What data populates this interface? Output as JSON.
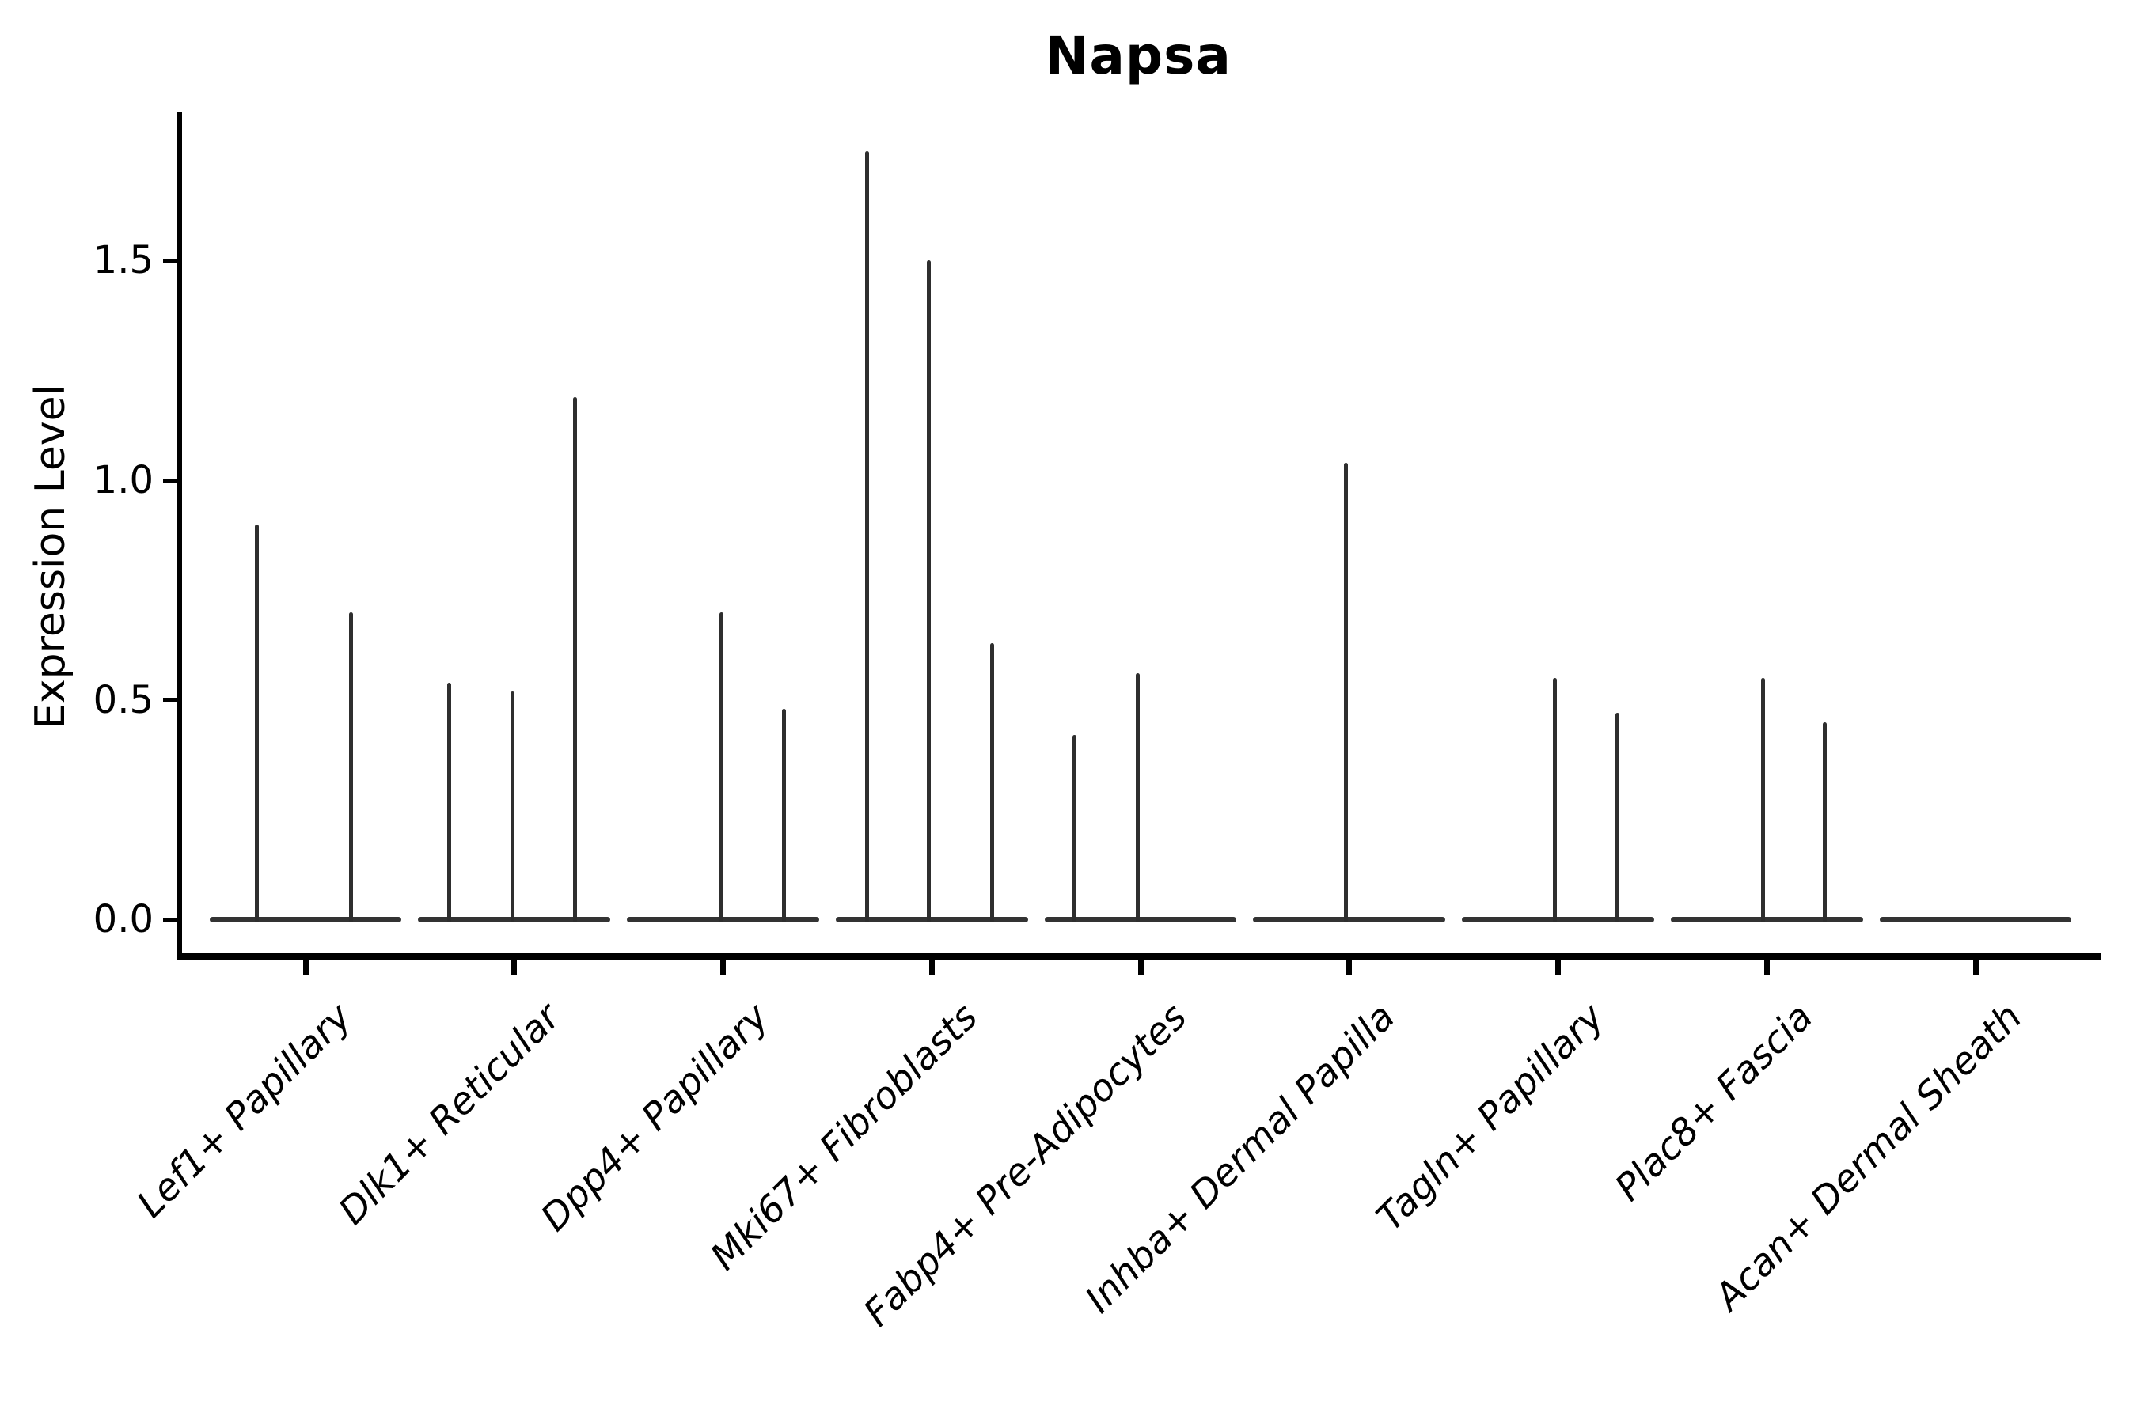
{
  "chart_data": {
    "type": "violin",
    "title": "Napsa",
    "xlabel": "",
    "ylabel": "Expression Level",
    "ylim": [
      -0.0875,
      1.8375
    ],
    "grid": false,
    "legend": "none",
    "yticks": [
      {
        "value": 0.0,
        "label": "0.0"
      },
      {
        "value": 0.5,
        "label": "0.5"
      },
      {
        "value": 1.0,
        "label": "1.0"
      },
      {
        "value": 1.5,
        "label": "1.5"
      }
    ],
    "colors": {
      "spike": "#2e2e2e",
      "base": "#333333",
      "axis": "#000000",
      "text": "#000000",
      "background": "#ffffff"
    },
    "categories": [
      "Lef1+ Papillary",
      "Dlk1+ Reticular",
      "Dpp4+ Papillary",
      "Mki67+ Fibroblasts",
      "Fabp4+ Pre-Adipocytes",
      "Inhba+ Dermal Papilla",
      "Tagln+ Papillary",
      "Plac8+ Fascia",
      "Acan+ Dermal Sheath"
    ],
    "series": [
      {
        "name": "Lef1+ Papillary",
        "base_halfwidth": 0.46,
        "spikes": [
          {
            "value": 0.9,
            "offset": -0.233
          },
          {
            "value": 0.7,
            "offset": 0.219
          }
        ]
      },
      {
        "name": "Dlk1+ Reticular",
        "base_halfwidth": 0.46,
        "spikes": [
          {
            "value": 0.54,
            "offset": -0.311
          },
          {
            "value": 0.52,
            "offset": -0.008
          },
          {
            "value": 1.19,
            "offset": 0.292
          }
        ]
      },
      {
        "name": "Dpp4+ Papillary",
        "base_halfwidth": 0.46,
        "spikes": [
          {
            "value": 0.7,
            "offset": -0.008
          },
          {
            "value": 0.48,
            "offset": 0.292
          }
        ]
      },
      {
        "name": "Mki67+ Fibroblasts",
        "base_halfwidth": 0.46,
        "spikes": [
          {
            "value": 1.75,
            "offset": -0.311
          },
          {
            "value": 1.5,
            "offset": -0.015
          },
          {
            "value": 0.63,
            "offset": 0.288
          }
        ]
      },
      {
        "name": "Fabp4+ Pre-Adipocytes",
        "base_halfwidth": 0.46,
        "spikes": [
          {
            "value": 0.42,
            "offset": -0.315
          },
          {
            "value": 0.56,
            "offset": -0.015
          }
        ]
      },
      {
        "name": "Inhba+ Dermal Papilla",
        "base_halfwidth": 0.46,
        "spikes": [
          {
            "value": 1.04,
            "offset": -0.015
          }
        ]
      },
      {
        "name": "Tagln+ Papillary",
        "base_halfwidth": 0.46,
        "spikes": [
          {
            "value": 0.55,
            "offset": -0.015
          },
          {
            "value": 0.47,
            "offset": 0.284
          }
        ]
      },
      {
        "name": "Plac8+ Fascia",
        "base_halfwidth": 0.46,
        "spikes": [
          {
            "value": 0.55,
            "offset": -0.019
          },
          {
            "value": 0.45,
            "offset": 0.277
          }
        ]
      },
      {
        "name": "Acan+ Dermal Sheath",
        "base_halfwidth": 0.46,
        "spikes": []
      }
    ]
  }
}
